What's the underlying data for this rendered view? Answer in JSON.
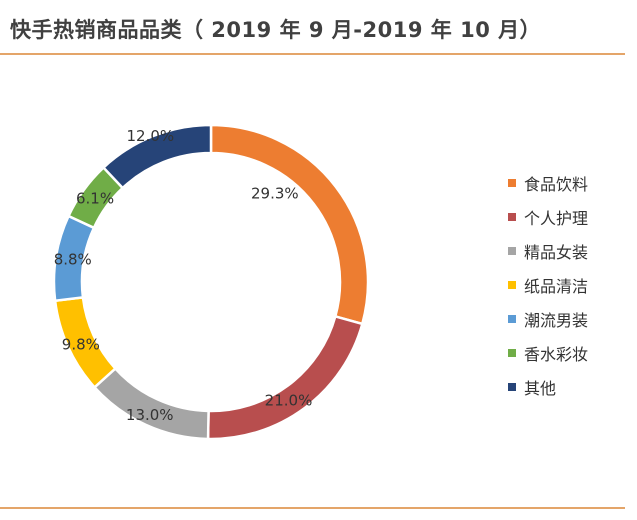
{
  "title": "快手热销商品品类（ 2019 年 9 月-2019 年 10 月）",
  "chart_data": {
    "type": "pie",
    "title": "快手热销商品品类（ 2019 年 9 月-2019 年 10 月）",
    "donut": true,
    "legend_position": "right",
    "slices": [
      {
        "name": "食品饮料",
        "value": 29.3,
        "label": "29.3%",
        "color": "#ED7D31"
      },
      {
        "name": "个人护理",
        "value": 21.0,
        "label": "21.0%",
        "color": "#B84E4E"
      },
      {
        "name": "精品女装",
        "value": 13.0,
        "label": "13.0%",
        "color": "#A5A5A5"
      },
      {
        "name": "纸品清洁",
        "value": 9.8,
        "label": "9.8%",
        "color": "#FFC000"
      },
      {
        "name": "潮流男装",
        "value": 8.8,
        "label": "8.8%",
        "color": "#5B9BD5"
      },
      {
        "name": "香水彩妆",
        "value": 6.1,
        "label": "6.1%",
        "color": "#70AD47"
      },
      {
        "name": "其他",
        "value": 12.0,
        "label": "12.0%",
        "color": "#264478"
      }
    ]
  }
}
